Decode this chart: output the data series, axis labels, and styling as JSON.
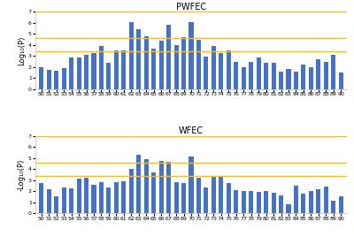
{
  "categories": [
    50,
    51,
    52,
    53,
    54,
    55,
    56,
    57,
    58,
    59,
    60,
    61,
    62,
    63,
    64,
    65,
    66,
    67,
    68,
    69,
    70,
    71,
    72,
    73,
    74,
    75,
    76,
    77,
    78,
    79,
    80,
    81,
    82,
    83,
    84,
    85,
    86,
    87,
    88,
    89,
    90
  ],
  "pwfec_values": [
    2.0,
    1.75,
    1.7,
    1.9,
    2.85,
    2.9,
    3.1,
    3.25,
    3.9,
    2.4,
    3.5,
    3.5,
    6.1,
    5.4,
    4.8,
    3.7,
    4.4,
    5.85,
    4.0,
    4.75,
    6.05,
    4.45,
    2.95,
    3.9,
    3.25,
    3.5,
    2.45,
    2.0,
    2.5,
    2.9,
    2.4,
    2.4,
    1.6,
    1.8,
    1.6,
    2.2,
    2.0,
    2.7,
    2.5,
    3.15,
    1.5
  ],
  "wfec_values": [
    2.7,
    2.2,
    1.55,
    2.35,
    2.25,
    3.1,
    3.2,
    2.55,
    2.8,
    2.3,
    2.85,
    2.9,
    4.0,
    5.25,
    4.85,
    3.7,
    4.75,
    4.65,
    2.85,
    2.75,
    5.1,
    3.2,
    2.35,
    3.4,
    3.35,
    2.7,
    2.1,
    2.0,
    2.0,
    1.9,
    2.0,
    1.85,
    1.65,
    0.85,
    2.5,
    1.75,
    2.05,
    2.2,
    2.45,
    1.1,
    1.5
  ],
  "bar_color": "#4472C4",
  "hline1": 3.4,
  "hline2": 4.6,
  "hline3": 7.0,
  "hline_color": "#FFC000",
  "ylim": [
    0,
    7
  ],
  "yticks": [
    0,
    1,
    2,
    3,
    4,
    5,
    6,
    7
  ],
  "title1": "PWFEC",
  "title2": "WFEC",
  "ylabel1": "Log₁₀(P)",
  "ylabel2": "-Log₁₀(P)",
  "background_color": "#ffffff",
  "title_fontsize": 7,
  "axis_fontsize": 6,
  "tick_fontsize": 4.5
}
